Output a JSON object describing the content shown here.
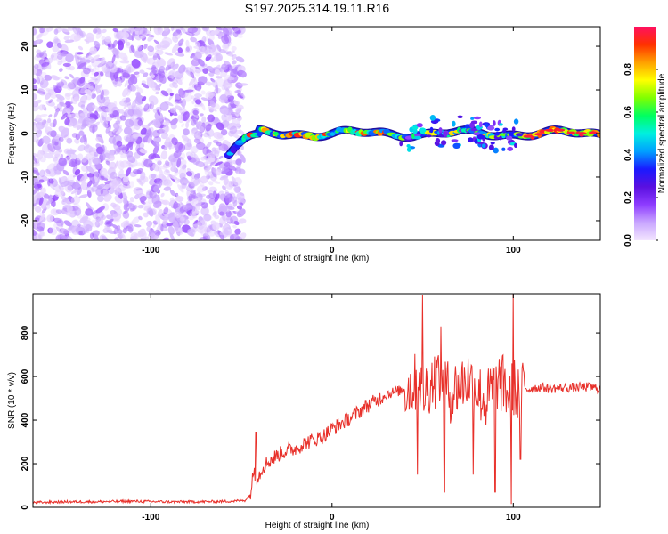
{
  "chart_data": [
    {
      "type": "heatmap",
      "title": "S197.2025.314.19.11.R16",
      "xlabel": "Height of straight line (km)",
      "ylabel": "Frequency (Hz)",
      "xlim": [
        -165,
        148
      ],
      "ylim": [
        -24.5,
        24.5
      ],
      "xticks": [
        -100,
        0,
        100
      ],
      "yticks": [
        -20,
        -10,
        0,
        10,
        20
      ],
      "noise_region_x": [
        -165,
        -53
      ],
      "signal_track": {
        "start_x": -57,
        "end_x": 148,
        "freq_start": -5,
        "freq_plateau": 0,
        "plateau_from_x": -40,
        "description_values_hz": [
          -5,
          -2,
          -0.5,
          0,
          0.5,
          0,
          0
        ]
      },
      "colorbar": {
        "label": "Normalized spectral amplitude",
        "range": [
          0.0,
          1.0
        ],
        "ticks": [
          0.0,
          0.2,
          0.4,
          0.6,
          0.8
        ],
        "tick_labels": [
          "0.0",
          "0.2",
          "0.4",
          "0.6",
          "0.8"
        ],
        "colormap": [
          "#f3e6ff",
          "#c9a6ff",
          "#8e3cff",
          "#5a10e0",
          "#1a1aff",
          "#00a0ff",
          "#00f0e0",
          "#00ff60",
          "#80ff00",
          "#ffff00",
          "#ffa000",
          "#ff3000",
          "#ff1060"
        ]
      }
    },
    {
      "type": "line",
      "xlabel": "Height of straight line (km)",
      "ylabel": "SNR (10 * v/v)",
      "xlim": [
        -165,
        148
      ],
      "ylim": [
        0,
        980
      ],
      "xticks": [
        -100,
        0,
        100
      ],
      "yticks": [
        0,
        200,
        400,
        600,
        800
      ],
      "line_color": "#e8302a",
      "series": [
        {
          "name": "SNR",
          "x": [
            -165,
            -150,
            -130,
            -110,
            -90,
            -70,
            -55,
            -48,
            -45,
            -43,
            -42,
            -40,
            -38,
            -35,
            -30,
            -25,
            -20,
            -15,
            -10,
            -5,
            0,
            5,
            10,
            15,
            20,
            25,
            28,
            30,
            35,
            40,
            45,
            48,
            50,
            55,
            60,
            65,
            70,
            75,
            80,
            85,
            90,
            95,
            98,
            100,
            102,
            105,
            108,
            110,
            115,
            120,
            130,
            140,
            148
          ],
          "values": [
            22,
            25,
            26,
            28,
            25,
            26,
            28,
            32,
            60,
            180,
            130,
            150,
            190,
            210,
            240,
            260,
            270,
            295,
            310,
            325,
            360,
            385,
            410,
            440,
            470,
            490,
            510,
            520,
            530,
            540,
            560,
            600,
            520,
            580,
            610,
            520,
            560,
            590,
            540,
            480,
            580,
            560,
            500,
            560,
            520,
            560,
            540,
            545,
            550,
            545,
            548,
            552,
            545
          ]
        }
      ],
      "annotations": {
        "spikes": [
          {
            "x": -42,
            "y": 345
          },
          {
            "x": 47,
            "y": 920
          },
          {
            "x": 50,
            "y": 975
          },
          {
            "x": 60,
            "y": 830
          },
          {
            "x": 90,
            "y": 850
          },
          {
            "x": 100,
            "y": 985
          }
        ],
        "dips": [
          {
            "x": 47,
            "y": 150
          },
          {
            "x": 62,
            "y": 70
          },
          {
            "x": 78,
            "y": 150
          },
          {
            "x": 90,
            "y": 70
          },
          {
            "x": 99,
            "y": 15
          },
          {
            "x": 104,
            "y": 220
          }
        ]
      }
    }
  ]
}
